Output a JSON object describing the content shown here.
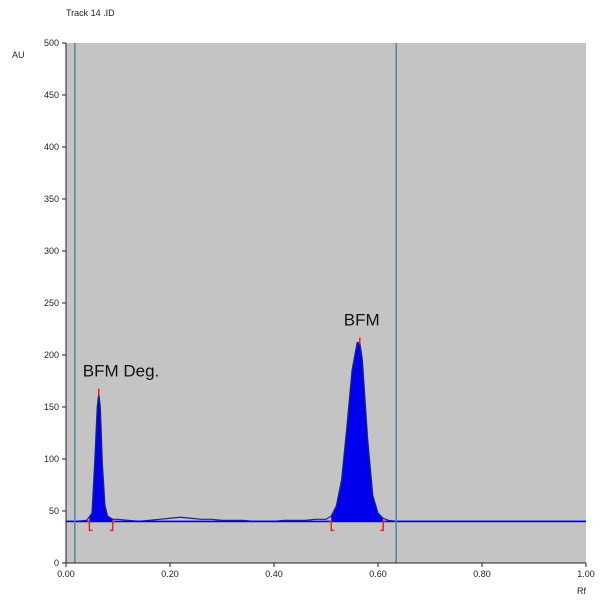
{
  "chart_data": {
    "type": "line",
    "title": "Track 14 .ID",
    "xlabel": "Rf",
    "ylabel": "AU",
    "xlim": [
      0.0,
      1.0
    ],
    "ylim": [
      0,
      500
    ],
    "x_ticks": [
      "0.00",
      "0.20",
      "0.40",
      "0.60",
      "0.80",
      "1.00"
    ],
    "x_tick_values": [
      0.0,
      0.2,
      0.4,
      0.6,
      0.8,
      1.0
    ],
    "y_ticks": [
      "0",
      "50",
      "100",
      "150",
      "200",
      "250",
      "300",
      "350",
      "400",
      "450",
      "500"
    ],
    "y_tick_values": [
      0,
      50,
      100,
      150,
      200,
      250,
      300,
      350,
      400,
      450,
      500
    ],
    "baseline": 40,
    "colors": {
      "plot_bg": "#c4c4c4",
      "peak_fill": "#0000ee",
      "trace": "#1a2a66",
      "vline": "#4f8a90",
      "marker": "#ee2222",
      "baseline_line": "#0000dd"
    },
    "vertical_lines_rf": [
      0.017,
      0.635
    ],
    "series": [
      {
        "x": [
          0.0,
          0.02,
          0.04,
          0.05,
          0.055,
          0.06,
          0.063,
          0.066,
          0.07,
          0.075,
          0.08,
          0.09,
          0.1,
          0.12,
          0.14,
          0.16,
          0.18,
          0.2,
          0.22,
          0.24,
          0.26,
          0.28,
          0.3,
          0.32,
          0.34,
          0.36,
          0.38,
          0.4,
          0.42,
          0.44,
          0.46,
          0.48,
          0.5,
          0.51,
          0.52,
          0.53,
          0.54,
          0.55,
          0.56,
          0.565,
          0.57,
          0.58,
          0.59,
          0.6,
          0.61,
          0.62,
          0.635,
          0.65,
          0.7,
          0.8,
          0.9,
          1.0
        ],
        "y": [
          40,
          40,
          41,
          48,
          95,
          150,
          163,
          150,
          95,
          55,
          45,
          42,
          42,
          41,
          40,
          41,
          42,
          43,
          44,
          43,
          42,
          42,
          41,
          41,
          41,
          40,
          40,
          40,
          41,
          41,
          41,
          42,
          42,
          45,
          55,
          80,
          130,
          185,
          212,
          212,
          195,
          120,
          65,
          48,
          43,
          41,
          40,
          40,
          40,
          40,
          40,
          40
        ]
      }
    ],
    "peaks": [
      {
        "label": "BFM Deg.",
        "rf": 0.063,
        "au": 163,
        "start": 0.045,
        "end": 0.09
      },
      {
        "label": "BFM",
        "rf": 0.565,
        "au": 212,
        "start": 0.51,
        "end": 0.61
      }
    ]
  }
}
